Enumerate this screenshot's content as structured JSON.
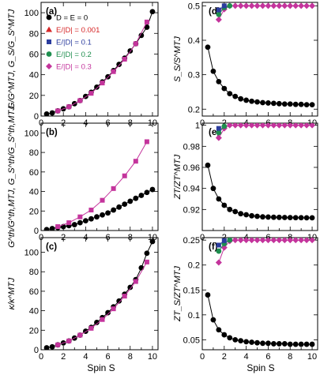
{
  "figure": {
    "xlabel_left": "Spin S",
    "xlabel_right": "Spin S",
    "legend": [
      {
        "label": "D = E = 0",
        "color": "#000000",
        "marker": "circle"
      },
      {
        "label": "E/|D| = 0.001",
        "color": "#d62728",
        "marker": "triangle"
      },
      {
        "label": "E/|D| = 0.1",
        "color": "#2b3c9e",
        "marker": "square"
      },
      {
        "label": "E/|D| = 0.2",
        "color": "#1e8e4e",
        "marker": "circle"
      },
      {
        "label": "E/|D| = 0.3",
        "color": "#c4349c",
        "marker": "diamond"
      }
    ]
  },
  "chart_data": [
    {
      "panel": "(a)",
      "type": "scatter",
      "ylabel": "G/G^MTJ, G_S/G_S^MTJ",
      "xlim": [
        0,
        10.5
      ],
      "ylim": [
        0,
        110
      ],
      "xticks": [
        0,
        2,
        4,
        6,
        8,
        10
      ],
      "yticks": [
        0,
        20,
        40,
        60,
        80,
        100
      ],
      "series": [
        {
          "name": "D = E = 0",
          "color": "#000000",
          "marker": "circle",
          "x": [
            0.5,
            1.0,
            1.5,
            2.0,
            2.5,
            3.0,
            3.5,
            4.0,
            4.5,
            5.0,
            5.5,
            6.0,
            6.5,
            7.0,
            7.5,
            8.0,
            8.5,
            9.0,
            9.5,
            10.0
          ],
          "y": [
            2,
            3,
            5,
            7,
            9,
            12,
            15,
            19,
            23,
            28,
            33,
            38,
            44,
            50,
            56,
            63,
            70,
            78,
            86,
            101
          ]
        },
        {
          "name": "E/|D| = 0.3",
          "color": "#c4349c",
          "marker": "square",
          "x": [
            1.5,
            2.5,
            3.5,
            4.5,
            5.5,
            6.5,
            7.5,
            8.5,
            9.5
          ],
          "y": [
            5,
            9,
            15,
            22,
            32,
            43,
            55,
            70,
            91
          ]
        }
      ]
    },
    {
      "panel": "(b)",
      "type": "scatter",
      "ylabel": "G^th/G^th,MTJ, G_S^th/G_S^th,MTJ",
      "xlim": [
        0,
        10.5
      ],
      "ylim": [
        0,
        110
      ],
      "xticks": [
        0,
        2,
        4,
        6,
        8,
        10
      ],
      "yticks": [
        0,
        20,
        40,
        60,
        80,
        100
      ],
      "series": [
        {
          "name": "D = E = 0",
          "color": "#000000",
          "marker": "circle",
          "x": [
            0.5,
            1.0,
            1.5,
            2.0,
            2.5,
            3.0,
            3.5,
            4.0,
            4.5,
            5.0,
            5.5,
            6.0,
            6.5,
            7.0,
            7.5,
            8.0,
            8.5,
            9.0,
            9.5,
            10.0
          ],
          "y": [
            1,
            2,
            3,
            4,
            5,
            6,
            8,
            10,
            12,
            14,
            16,
            18,
            21,
            24,
            27,
            30,
            33,
            36,
            39,
            42
          ]
        },
        {
          "name": "E/|D| = 0.3",
          "color": "#c4349c",
          "marker": "square",
          "x": [
            1.5,
            2.5,
            3.5,
            4.5,
            5.5,
            6.5,
            7.5,
            8.5,
            9.5
          ],
          "y": [
            4,
            8,
            14,
            21,
            31,
            43,
            56,
            71,
            91
          ]
        }
      ]
    },
    {
      "panel": "(c)",
      "type": "scatter",
      "ylabel": "κ/κ^MTJ",
      "xlim": [
        0,
        10.5
      ],
      "ylim": [
        0,
        115
      ],
      "xticks": [
        0,
        2,
        4,
        6,
        8,
        10
      ],
      "yticks": [
        0,
        20,
        40,
        60,
        80,
        100
      ],
      "series": [
        {
          "name": "D = E = 0",
          "color": "#000000",
          "marker": "circle",
          "x": [
            0.5,
            1.0,
            1.5,
            2.0,
            2.5,
            3.0,
            3.5,
            4.0,
            4.5,
            5.0,
            5.5,
            6.0,
            6.5,
            7.0,
            7.5,
            8.0,
            8.5,
            9.0,
            9.5,
            10.0
          ],
          "y": [
            2,
            3,
            5,
            7,
            9,
            12,
            15,
            19,
            23,
            28,
            33,
            38,
            44,
            50,
            57,
            64,
            72,
            84,
            99,
            111
          ]
        },
        {
          "name": "E/|D| = 0.3",
          "color": "#c4349c",
          "marker": "square",
          "x": [
            1.5,
            2.5,
            3.5,
            4.5,
            5.5,
            6.5,
            7.5,
            8.5,
            9.5
          ],
          "y": [
            5,
            9,
            15,
            22,
            31,
            42,
            55,
            70,
            90
          ]
        }
      ]
    },
    {
      "panel": "(d)",
      "type": "scatter",
      "ylabel": "S_S/S^MTJ",
      "xlim": [
        0,
        10.5
      ],
      "ylim": [
        0.18,
        0.51
      ],
      "xticks": [
        0,
        2,
        4,
        6,
        8,
        10
      ],
      "yticks": [
        0.2,
        0.3,
        0.4,
        0.5
      ],
      "series": [
        {
          "name": "D = E = 0",
          "color": "#000000",
          "marker": "circle",
          "x": [
            0.5,
            1.0,
            1.5,
            2.0,
            2.5,
            3.0,
            3.5,
            4.0,
            4.5,
            5.0,
            5.5,
            6.0,
            6.5,
            7.0,
            7.5,
            8.0,
            8.5,
            9.0,
            9.5,
            10.0
          ],
          "y": [
            0.38,
            0.31,
            0.28,
            0.26,
            0.245,
            0.237,
            0.23,
            0.226,
            0.223,
            0.221,
            0.219,
            0.218,
            0.217,
            0.216,
            0.215,
            0.215,
            0.214,
            0.214,
            0.213,
            0.213
          ]
        },
        {
          "name": "E/|D| = 0.3",
          "color": "#c4349c",
          "marker": "diamond",
          "x": [
            1.5,
            2.0,
            2.5,
            3.0,
            3.5,
            4.0,
            4.5,
            5.0,
            5.5,
            6.0,
            6.5,
            7.0,
            7.5,
            8.0,
            8.5,
            9.0,
            9.5,
            10.0
          ],
          "y": [
            0.46,
            0.49,
            0.5,
            0.5,
            0.5,
            0.5,
            0.5,
            0.5,
            0.5,
            0.5,
            0.5,
            0.5,
            0.5,
            0.5,
            0.5,
            0.5,
            0.5,
            0.5
          ]
        },
        {
          "name": "E/|D| = 0.2",
          "color": "#1e8e4e",
          "marker": "circle",
          "x": [
            1.5,
            2.0,
            2.5
          ],
          "y": [
            0.475,
            0.495,
            0.5
          ]
        },
        {
          "name": "E/|D| = 0.1",
          "color": "#2b3c9e",
          "marker": "square",
          "x": [
            1.5,
            2.0
          ],
          "y": [
            0.488,
            0.5
          ]
        }
      ]
    },
    {
      "panel": "(e)",
      "type": "scatter",
      "ylabel": "ZT/ZT^MTJ",
      "xlim": [
        0,
        10.5
      ],
      "ylim": [
        0.9,
        1.002
      ],
      "xticks": [
        0,
        2,
        4,
        6,
        8,
        10
      ],
      "yticks": [
        0.92,
        0.94,
        0.96,
        0.98,
        1.0
      ],
      "series": [
        {
          "name": "D = E = 0",
          "color": "#000000",
          "marker": "circle",
          "x": [
            0.5,
            1.0,
            1.5,
            2.0,
            2.5,
            3.0,
            3.5,
            4.0,
            4.5,
            5.0,
            5.5,
            6.0,
            6.5,
            7.0,
            7.5,
            8.0,
            8.5,
            9.0,
            9.5,
            10.0
          ],
          "y": [
            0.962,
            0.94,
            0.93,
            0.924,
            0.92,
            0.918,
            0.916,
            0.915,
            0.914,
            0.9135,
            0.913,
            0.9128,
            0.9126,
            0.9125,
            0.9124,
            0.9123,
            0.9122,
            0.9122,
            0.9121,
            0.9121
          ]
        },
        {
          "name": "E/|D| = 0.3",
          "color": "#c4349c",
          "marker": "diamond",
          "x": [
            1.5,
            2.0,
            2.5,
            3.0,
            3.5,
            4.0,
            4.5,
            5.0,
            5.5,
            6.0,
            6.5,
            7.0,
            7.5,
            8.0,
            8.5,
            9.0,
            9.5,
            10.0
          ],
          "y": [
            0.988,
            0.997,
            1.0,
            1.0,
            1.0,
            1.0,
            1.0,
            1.0,
            1.0,
            1.0,
            1.0,
            1.0,
            1.0,
            1.0,
            1.0,
            1.0,
            1.0,
            1.0
          ]
        },
        {
          "name": "E/|D| = 0.2",
          "color": "#1e8e4e",
          "marker": "circle",
          "x": [
            1.5,
            2.0
          ],
          "y": [
            0.993,
            0.999
          ]
        },
        {
          "name": "E/|D| = 0.1",
          "color": "#2b3c9e",
          "marker": "square",
          "x": [
            1.5
          ],
          "y": [
            0.997
          ]
        }
      ]
    },
    {
      "panel": "(f)",
      "type": "scatter",
      "ylabel": "ZT_S/ZT^MTJ",
      "xlim": [
        0,
        10.5
      ],
      "ylim": [
        0.03,
        0.255
      ],
      "xticks": [
        0,
        2,
        4,
        6,
        8,
        10
      ],
      "yticks": [
        0.05,
        0.1,
        0.15,
        0.2,
        0.25
      ],
      "series": [
        {
          "name": "D = E = 0",
          "color": "#000000",
          "marker": "circle",
          "x": [
            0.5,
            1.0,
            1.5,
            2.0,
            2.5,
            3.0,
            3.5,
            4.0,
            4.5,
            5.0,
            5.5,
            6.0,
            6.5,
            7.0,
            7.5,
            8.0,
            8.5,
            9.0,
            9.5,
            10.0
          ],
          "y": [
            0.14,
            0.09,
            0.07,
            0.06,
            0.054,
            0.05,
            0.048,
            0.046,
            0.045,
            0.044,
            0.043,
            0.043,
            0.042,
            0.042,
            0.042,
            0.041,
            0.041,
            0.041,
            0.041,
            0.041
          ]
        },
        {
          "name": "E/|D| = 0.3",
          "color": "#c4349c",
          "marker": "diamond",
          "x": [
            1.5,
            2.0,
            2.5,
            3.0,
            3.5,
            4.0,
            4.5,
            5.0,
            5.5,
            6.0,
            6.5,
            7.0,
            7.5,
            8.0,
            8.5,
            9.0,
            9.5,
            10.0
          ],
          "y": [
            0.205,
            0.235,
            0.248,
            0.25,
            0.25,
            0.25,
            0.25,
            0.25,
            0.25,
            0.25,
            0.25,
            0.25,
            0.25,
            0.25,
            0.25,
            0.25,
            0.25,
            0.25
          ]
        },
        {
          "name": "E/|D| = 0.2",
          "color": "#1e8e4e",
          "marker": "circle",
          "x": [
            1.5,
            2.0,
            2.5
          ],
          "y": [
            0.228,
            0.243,
            0.25
          ]
        },
        {
          "name": "E/|D| = 0.1",
          "color": "#2b3c9e",
          "marker": "square",
          "x": [
            1.5,
            2.0
          ],
          "y": [
            0.24,
            0.249
          ]
        }
      ]
    }
  ]
}
